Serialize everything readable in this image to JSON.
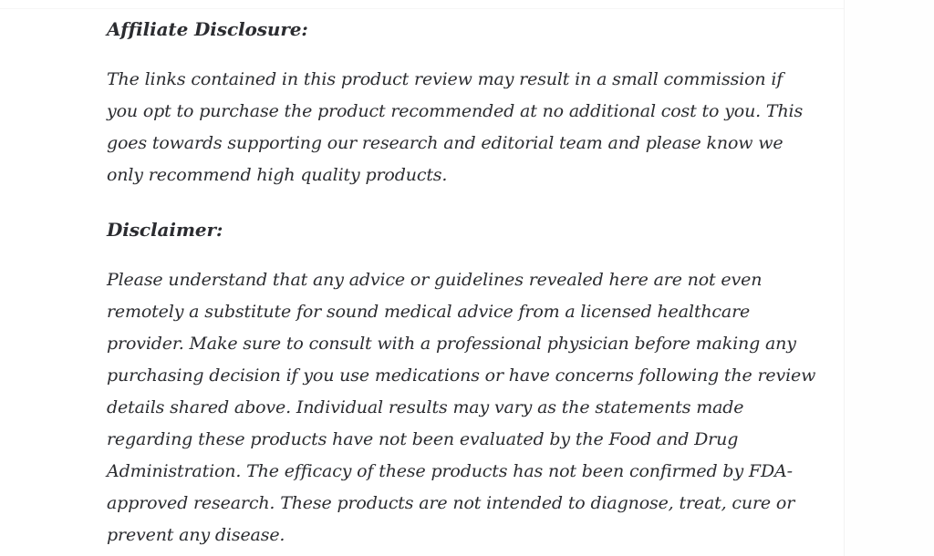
{
  "page": {
    "background_color": "#fefefe",
    "content_background_color": "#ffffff",
    "divider_color": "#f2f2f2",
    "text_color": "#2b2c30"
  },
  "article": {
    "sections": [
      {
        "heading": "Affiliate Disclosure:",
        "body": "The links contained in this product review may result in a small commission if\nyou opt to purchase the product recommended at no additional cost to you. This\ngoes towards supporting our research and editorial team and please know we\nonly recommend high quality products."
      },
      {
        "heading": "Disclaimer:",
        "body": "Please understand that any advice or guidelines revealed here are not even\nremotely a substitute for sound medical advice from a licensed healthcare\nprovider. Make sure to consult with a professional physician before making any\npurchasing decision if you use medications or have concerns following the review\ndetails shared above. Individual results may vary as the statements made\nregarding these products have not been evaluated by the Food and Drug\nAdministration. The efficacy of these products has not been confirmed by FDA-\napproved research. These products are not intended to diagnose, treat, cure or\nprevent any disease."
      }
    ]
  }
}
